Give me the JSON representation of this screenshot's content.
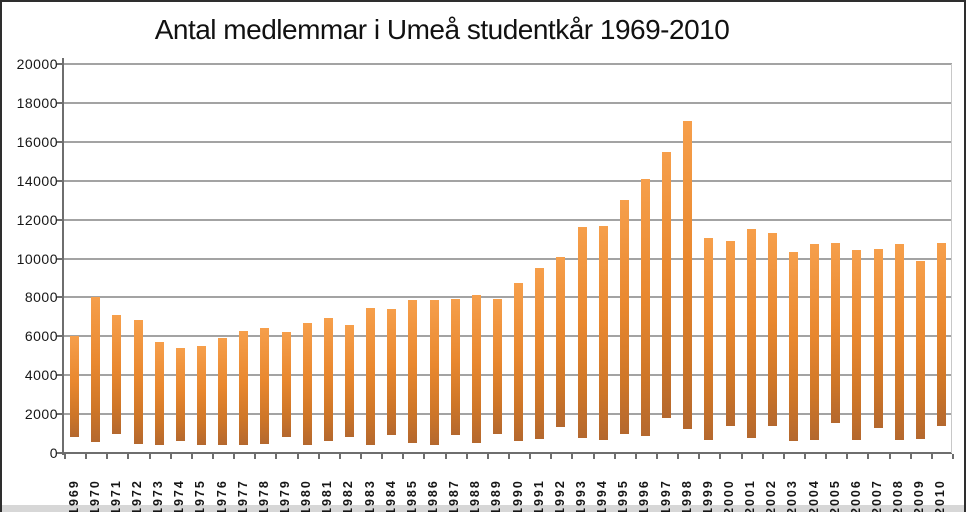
{
  "chart_data": {
    "type": "bar",
    "title": "Antal medlemmar i Umeå studentkår 1969-2010",
    "xlabel": "",
    "ylabel": "",
    "legend": "none",
    "grid": true,
    "ylim": [
      0,
      20000
    ],
    "ytick_interval": 2000,
    "yticks": [
      0,
      2000,
      4000,
      6000,
      8000,
      10000,
      12000,
      14000,
      16000,
      18000,
      20000
    ],
    "categories": [
      "1969",
      "1970",
      "1971",
      "1972",
      "1973",
      "1974",
      "1975",
      "1976",
      "1977",
      "1978",
      "1979",
      "1980",
      "1981",
      "1982",
      "1983",
      "1984",
      "1985",
      "1986",
      "1987",
      "1988",
      "1989",
      "1990",
      "1991",
      "1992",
      "1993",
      "1994",
      "1995",
      "1996",
      "1997",
      "1998",
      "1999",
      "2000",
      "2001",
      "2002",
      "2003",
      "2004",
      "2005",
      "2006",
      "2007",
      "2008",
      "2009",
      "2010"
    ],
    "values": [
      6000,
      8000,
      7100,
      6850,
      5700,
      5400,
      5500,
      5900,
      6300,
      6450,
      6200,
      6700,
      6950,
      6600,
      7450,
      7400,
      7850,
      7850,
      7900,
      8150,
      7900,
      8750,
      9500,
      10100,
      11600,
      11650,
      13000,
      14100,
      15500,
      17050,
      11050,
      10900,
      11500,
      11300,
      10350,
      10750,
      10800,
      10450,
      10500,
      10750,
      9850,
      10800
    ],
    "bar_bases": [
      800,
      550,
      950,
      450,
      400,
      600,
      400,
      400,
      400,
      450,
      800,
      400,
      600,
      800,
      400,
      950,
      500,
      400,
      900,
      500,
      950,
      600,
      700,
      1350,
      750,
      650,
      1000,
      850,
      1800,
      1250,
      650,
      1400,
      750,
      1400,
      600,
      650,
      1550,
      650,
      1300,
      650,
      700,
      1400
    ],
    "series_note": "floating columns: each bar spans from bar_bases[i] to values[i]",
    "colors": {
      "bar_gradient_top": "#F69F4B",
      "bar_gradient_mid": "#E9882F",
      "bar_gradient_low": "#CE7628",
      "bar_gradient_bottom": "#B4682E",
      "gridline": "#A3A3A3",
      "axis": "#6E6E6E",
      "plot_right_border": "#C8C8C8",
      "text": "#161616",
      "background": "#FFFFFF"
    }
  }
}
